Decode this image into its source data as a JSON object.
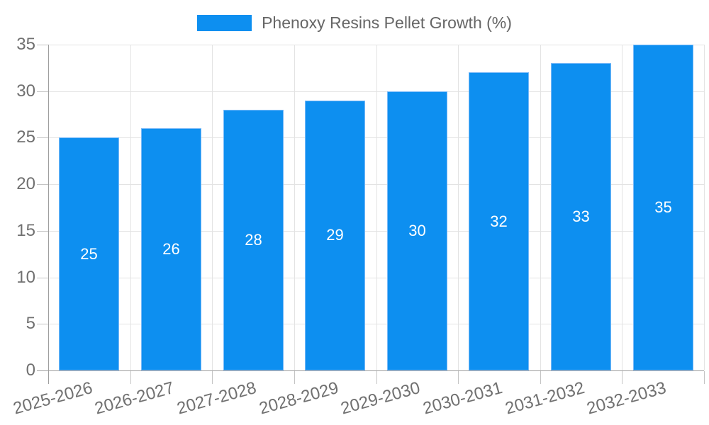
{
  "legend": {
    "label": "Phenoxy Resins Pellet Growth (%)"
  },
  "colors": {
    "bar": "#0d8ff0",
    "bar_edge": "#78b9f8",
    "grid": "#e3e3e3",
    "axis": "#9e9e9e",
    "tick_mark": "#c4c4c4",
    "tick_text": "#707070",
    "legend_text": "#666666",
    "data_label_text": "#ffffff",
    "background": "#ffffff"
  },
  "chart_data": {
    "type": "bar",
    "title": "Phenoxy Resins Pellet Growth (%)",
    "categories": [
      "2025-2026",
      "2026-2027",
      "2027-2028",
      "2028-2029",
      "2029-2030",
      "2030-2031",
      "2031-2032",
      "2032-2033"
    ],
    "values": [
      25,
      26,
      28,
      29,
      30,
      32,
      33,
      35
    ],
    "xlabel": "",
    "ylabel": "",
    "ylim": [
      0,
      35
    ],
    "yticks": [
      0,
      5,
      10,
      15,
      20,
      25,
      30,
      35
    ],
    "grid": "horizontal and vertical light gray gridlines",
    "legend_position": "top-center",
    "data_label_position": "inside-center",
    "x_tick_rotation_deg": -15.5
  }
}
